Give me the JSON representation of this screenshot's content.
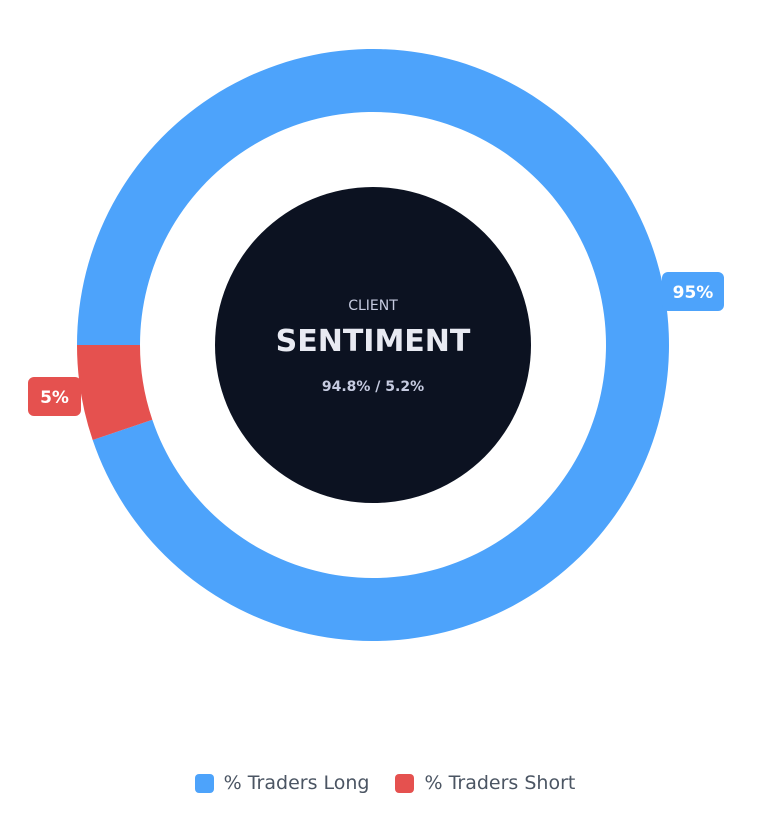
{
  "chart_data": {
    "type": "pie",
    "variant": "donut",
    "categories": [
      "% Traders Long",
      "% Traders Short"
    ],
    "values": [
      94.8,
      5.2
    ],
    "data_labels": [
      "95%",
      "5%"
    ],
    "colors": [
      "#4da3fb",
      "#e5514f"
    ],
    "legend_position": "bottom",
    "center": {
      "overline": "CLIENT",
      "title": "SENTIMENT",
      "subtitle": "94.8% / 5.2%",
      "background": "#0c1221"
    }
  },
  "legend": {
    "items": [
      {
        "label": "% Traders Long",
        "color": "#4da3fb"
      },
      {
        "label": "% Traders Short",
        "color": "#e5514f"
      }
    ]
  }
}
